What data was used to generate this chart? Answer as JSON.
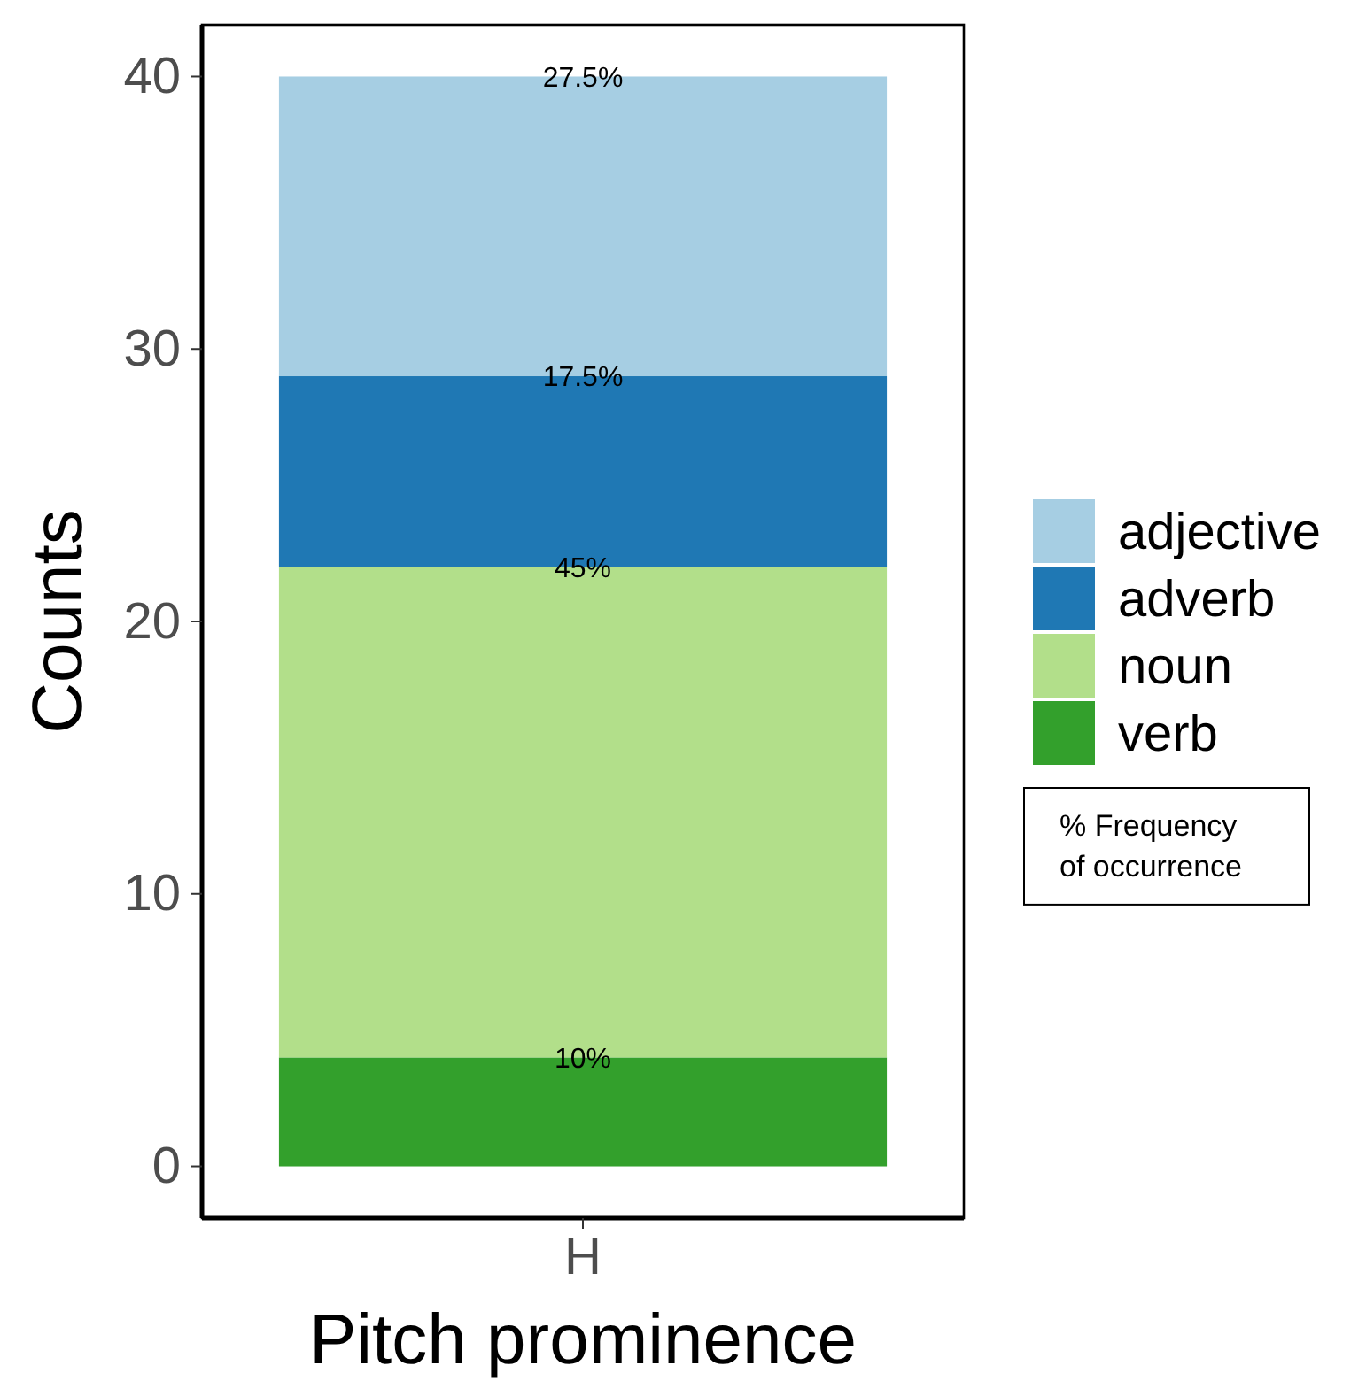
{
  "chart_data": {
    "type": "bar",
    "stacked": true,
    "xlabel": "Pitch prominence",
    "ylabel": "Counts",
    "categories": [
      "H"
    ],
    "series": [
      {
        "name": "verb",
        "color": "#33a02c",
        "values": [
          4
        ]
      },
      {
        "name": "noun",
        "color": "#b2df8a",
        "values": [
          18
        ]
      },
      {
        "name": "adverb",
        "color": "#1f78b4",
        "values": [
          7
        ]
      },
      {
        "name": "adjective",
        "color": "#a6cee3",
        "values": [
          11
        ]
      }
    ],
    "ylim": [
      -1.9,
      41.9
    ],
    "yticks": [
      0,
      10,
      20,
      30,
      40
    ],
    "grid": false,
    "legend": "right",
    "annotations": [
      {
        "text": "10%",
        "x": "H",
        "y": 4
      },
      {
        "text": "45%",
        "x": "H",
        "y": 22
      },
      {
        "text": "17.5%",
        "x": "H",
        "y": 29
      },
      {
        "text": "27.5%",
        "x": "H",
        "y": 40
      },
      "% Frequency of occurrence"
    ]
  }
}
